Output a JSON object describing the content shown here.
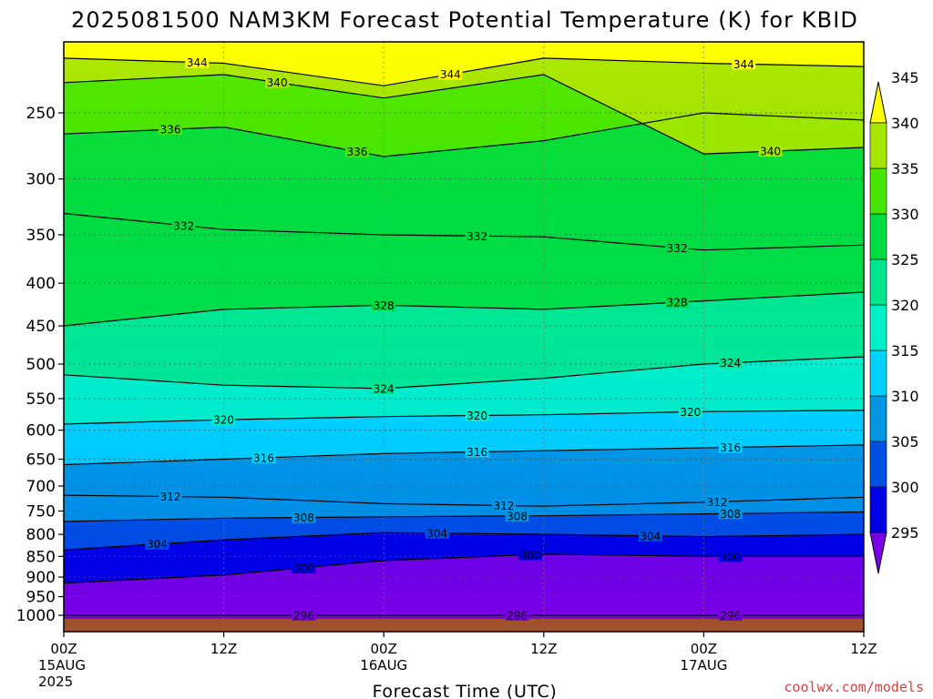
{
  "chart_data": {
    "type": "heatmap",
    "title": "2025081500 NAM3KM Forecast Potential Temperature (K) for KBID",
    "xlabel": "Forecast Time (UTC)",
    "ylabel": "",
    "x_ticks": [
      {
        "hour": 0,
        "lines": [
          "00Z",
          "15AUG",
          "2025"
        ]
      },
      {
        "hour": 12,
        "lines": [
          "12Z"
        ]
      },
      {
        "hour": 24,
        "lines": [
          "00Z",
          "16AUG"
        ]
      },
      {
        "hour": 36,
        "lines": [
          "12Z"
        ]
      },
      {
        "hour": 48,
        "lines": [
          "00Z",
          "17AUG"
        ]
      },
      {
        "hour": 60,
        "lines": [
          "12Z"
        ]
      }
    ],
    "xlim_hours": [
      0,
      60
    ],
    "y_axis": "pressure (log scale, inverted)",
    "y_ticks": [
      250,
      300,
      350,
      400,
      450,
      500,
      550,
      600,
      650,
      700,
      750,
      800,
      850,
      900,
      950,
      1000
    ],
    "ylim": [
      200,
      1025
    ],
    "grid": "dotted at tick positions",
    "colorbar": {
      "levels": [
        295,
        300,
        305,
        310,
        315,
        320,
        325,
        330,
        335,
        340,
        345
      ],
      "colors": [
        "#7a00e6",
        "#0000e6",
        "#0050e6",
        "#0096e6",
        "#00d2ff",
        "#00f0c8",
        "#00e690",
        "#00dc40",
        "#46e600",
        "#a6e600",
        "#ffff00"
      ],
      "extend": "both"
    },
    "contour_interval": 4,
    "contour_lines": [
      {
        "value": 296,
        "pressure": [
          1000,
          1000,
          1000,
          1000,
          1000,
          1000
        ],
        "labels": [
          18,
          34,
          50
        ]
      },
      {
        "value": 300,
        "pressure": [
          915,
          895,
          860,
          845,
          850,
          850
        ],
        "labels": [
          18,
          35,
          50
        ]
      },
      {
        "value": 304,
        "pressure": [
          835,
          812,
          796,
          800,
          805,
          800
        ],
        "labels": [
          7,
          28,
          44
        ]
      },
      {
        "value": 308,
        "pressure": [
          772,
          765,
          762,
          760,
          756,
          752
        ],
        "labels": [
          18,
          34,
          50
        ]
      },
      {
        "value": 312,
        "pressure": [
          718,
          722,
          735,
          740,
          732,
          722
        ],
        "labels": [
          8,
          33,
          49
        ]
      },
      {
        "value": 316,
        "pressure": [
          660,
          650,
          640,
          635,
          630,
          625
        ],
        "labels": [
          15,
          31,
          50
        ]
      },
      {
        "value": 320,
        "pressure": [
          590,
          583,
          578,
          575,
          570,
          568
        ],
        "labels": [
          12,
          31,
          47
        ]
      },
      {
        "value": 324,
        "pressure": [
          515,
          530,
          535,
          520,
          500,
          490
        ],
        "labels": [
          24,
          50
        ]
      },
      {
        "value": 328,
        "pressure": [
          450,
          430,
          425,
          430,
          420,
          410
        ],
        "labels": [
          24,
          46
        ]
      },
      {
        "value": 332,
        "pressure": [
          330,
          345,
          350,
          352,
          365,
          360
        ],
        "labels": [
          9,
          31,
          46
        ]
      },
      {
        "value": 336,
        "pressure": [
          265,
          260,
          282,
          270,
          250,
          255
        ],
        "labels": [
          8,
          22
        ]
      },
      {
        "value": 340,
        "pressure": [
          230,
          225,
          240,
          225,
          280,
          275
        ],
        "labels": [
          16,
          53
        ]
      },
      {
        "value": 344,
        "pressure": [
          215,
          218,
          232,
          215,
          218,
          220
        ],
        "labels": [
          10,
          29,
          51
        ]
      }
    ],
    "contour_labels": [
      "296",
      "300",
      "304",
      "308",
      "312",
      "316",
      "320",
      "324",
      "328",
      "332",
      "336",
      "340",
      "344"
    ],
    "ground_color": "#a0522d"
  },
  "credit": "coolwx.com/models"
}
